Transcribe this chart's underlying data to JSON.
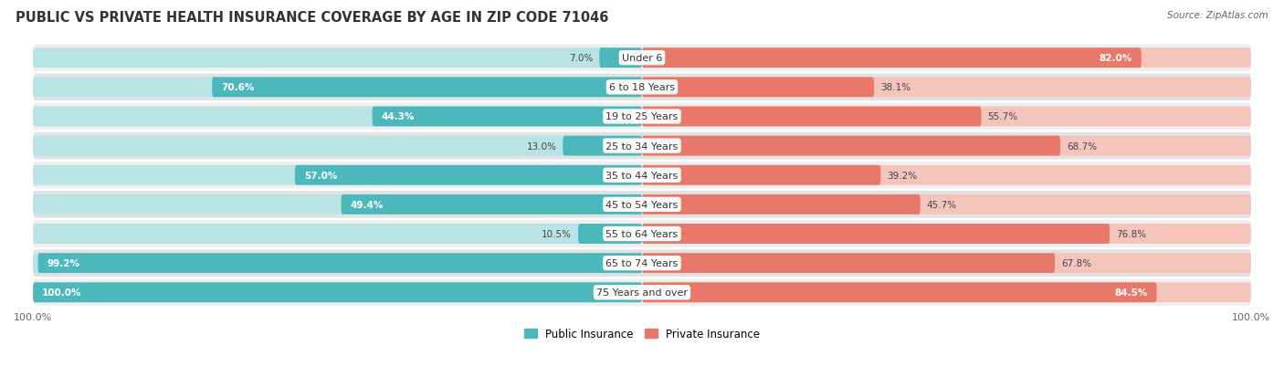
{
  "title": "PUBLIC VS PRIVATE HEALTH INSURANCE COVERAGE BY AGE IN ZIP CODE 71046",
  "source": "Source: ZipAtlas.com",
  "categories": [
    "Under 6",
    "6 to 18 Years",
    "19 to 25 Years",
    "25 to 34 Years",
    "35 to 44 Years",
    "45 to 54 Years",
    "55 to 64 Years",
    "65 to 74 Years",
    "75 Years and over"
  ],
  "public_values": [
    7.0,
    70.6,
    44.3,
    13.0,
    57.0,
    49.4,
    10.5,
    99.2,
    100.0
  ],
  "private_values": [
    82.0,
    38.1,
    55.7,
    68.7,
    39.2,
    45.7,
    76.8,
    67.8,
    84.5
  ],
  "public_color": "#4db8bc",
  "private_color": "#e8796a",
  "public_color_light": "#b8e4e6",
  "private_color_light": "#f5c5bc",
  "row_bg_color": "#efefef",
  "row_alt_bg_color": "#e2e2e2",
  "title_fontsize": 10.5,
  "label_fontsize": 8.0,
  "value_fontsize": 7.5,
  "figsize": [
    14.06,
    4.14
  ],
  "dpi": 100
}
